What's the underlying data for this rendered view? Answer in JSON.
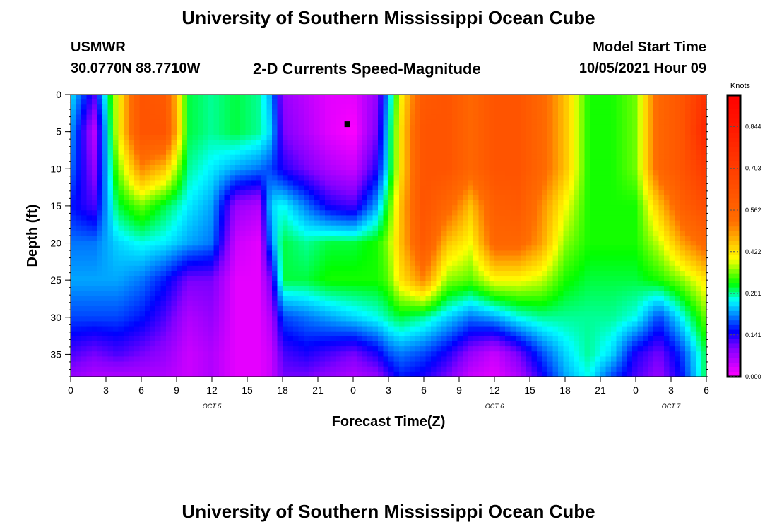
{
  "page": {
    "title_top": "University of Southern Mississippi Ocean Cube",
    "title_bottom": "University of Southern Mississippi Ocean Cube",
    "station": "USMWR",
    "coords": "30.0770N  88.7710W",
    "start_label": "Model Start Time",
    "start_value": "10/05/2021 Hour 09"
  },
  "chart_data": {
    "type": "heatmap",
    "title": "2-D Currents Speed-Magnitude",
    "xlabel": "Forecast Time(Z)",
    "ylabel": "Depth (ft)",
    "x_range_hours": [
      0,
      54
    ],
    "ylim": [
      0,
      38
    ],
    "y_ticks": [
      0,
      5,
      10,
      15,
      20,
      25,
      30,
      35
    ],
    "x_tick_labels": [
      "0",
      "3",
      "6",
      "9",
      "12",
      "15",
      "18",
      "21",
      "0",
      "3",
      "6",
      "9",
      "12",
      "15",
      "18",
      "21",
      "0",
      "3",
      "6"
    ],
    "date_labels": [
      {
        "label": "OCT 5",
        "hour": 12
      },
      {
        "label": "OCT 6",
        "hour": 36
      },
      {
        "label": "OCT 7",
        "hour": 51
      }
    ],
    "colorbar": {
      "unit": "Knots",
      "min": 0.0,
      "max": 0.95,
      "ticks": [
        "0.000",
        "0.141",
        "0.281",
        "0.422",
        "0.562",
        "0.703",
        "0.844"
      ],
      "tick_values": [
        0.0,
        0.141,
        0.281,
        0.422,
        0.562,
        0.703,
        0.844
      ]
    },
    "grid": false,
    "series": [
      {
        "name": "",
        "times_hours": [
          0,
          2,
          4,
          6,
          8,
          10,
          12,
          14,
          16,
          17,
          18,
          20,
          22,
          24,
          26,
          27,
          28,
          30,
          32,
          34,
          36,
          38,
          40,
          42,
          44,
          46,
          48,
          50,
          52,
          54
        ],
        "depths_ft": [
          0,
          5,
          10,
          15,
          20,
          25,
          30,
          35,
          38
        ],
        "speed_knots": [
          [
            0.25,
            0.12,
            0.4,
            0.62,
            0.6,
            0.3,
            0.28,
            0.3,
            0.28,
            0.22,
            0.08,
            0.05,
            0.02,
            0.02,
            0.08,
            0.22,
            0.4,
            0.6,
            0.62,
            0.55,
            0.62,
            0.62,
            0.55,
            0.45,
            0.32,
            0.32,
            0.35,
            0.55,
            0.62,
            0.75
          ],
          [
            0.22,
            0.05,
            0.4,
            0.62,
            0.62,
            0.3,
            0.28,
            0.3,
            0.28,
            0.24,
            0.1,
            0.06,
            0.02,
            0.0,
            0.1,
            0.25,
            0.42,
            0.62,
            0.62,
            0.55,
            0.62,
            0.62,
            0.55,
            0.45,
            0.32,
            0.32,
            0.35,
            0.55,
            0.62,
            0.8
          ],
          [
            0.2,
            0.08,
            0.35,
            0.5,
            0.45,
            0.28,
            0.25,
            0.22,
            0.2,
            0.18,
            0.14,
            0.1,
            0.06,
            0.04,
            0.14,
            0.26,
            0.42,
            0.62,
            0.62,
            0.55,
            0.62,
            0.62,
            0.55,
            0.45,
            0.32,
            0.32,
            0.35,
            0.55,
            0.62,
            0.72
          ],
          [
            0.16,
            0.12,
            0.3,
            0.35,
            0.3,
            0.25,
            0.22,
            0.08,
            0.06,
            0.24,
            0.26,
            0.2,
            0.14,
            0.12,
            0.22,
            0.32,
            0.45,
            0.62,
            0.55,
            0.45,
            0.58,
            0.6,
            0.5,
            0.4,
            0.32,
            0.32,
            0.32,
            0.45,
            0.58,
            0.65
          ],
          [
            0.2,
            0.2,
            0.24,
            0.26,
            0.25,
            0.22,
            0.2,
            0.04,
            0.02,
            0.2,
            0.3,
            0.28,
            0.3,
            0.3,
            0.32,
            0.36,
            0.45,
            0.6,
            0.45,
            0.4,
            0.55,
            0.55,
            0.48,
            0.36,
            0.32,
            0.32,
            0.32,
            0.38,
            0.48,
            0.55
          ],
          [
            0.22,
            0.22,
            0.22,
            0.2,
            0.16,
            0.1,
            0.1,
            0.02,
            0.02,
            0.1,
            0.3,
            0.3,
            0.32,
            0.32,
            0.32,
            0.34,
            0.42,
            0.5,
            0.36,
            0.34,
            0.4,
            0.4,
            0.38,
            0.32,
            0.3,
            0.3,
            0.3,
            0.32,
            0.36,
            0.42
          ],
          [
            0.18,
            0.18,
            0.18,
            0.16,
            0.12,
            0.06,
            0.08,
            0.02,
            0.02,
            0.06,
            0.18,
            0.2,
            0.22,
            0.24,
            0.26,
            0.28,
            0.3,
            0.28,
            0.24,
            0.2,
            0.22,
            0.26,
            0.28,
            0.28,
            0.28,
            0.28,
            0.26,
            0.18,
            0.26,
            0.35
          ],
          [
            0.12,
            0.1,
            0.12,
            0.1,
            0.08,
            0.04,
            0.06,
            0.02,
            0.02,
            0.04,
            0.12,
            0.14,
            0.12,
            0.1,
            0.14,
            0.18,
            0.2,
            0.18,
            0.14,
            0.08,
            0.04,
            0.1,
            0.18,
            0.24,
            0.28,
            0.24,
            0.14,
            0.1,
            0.18,
            0.3
          ],
          [
            0.08,
            0.06,
            0.06,
            0.06,
            0.06,
            0.04,
            0.06,
            0.02,
            0.02,
            0.04,
            0.1,
            0.1,
            0.08,
            0.06,
            0.08,
            0.12,
            0.16,
            0.14,
            0.1,
            0.04,
            0.02,
            0.06,
            0.14,
            0.22,
            0.26,
            0.18,
            0.12,
            0.08,
            0.16,
            0.3
          ]
        ]
      }
    ],
    "markers": [
      {
        "name": "location-marker",
        "hour": 23.5,
        "depth_ft": 4
      }
    ]
  }
}
